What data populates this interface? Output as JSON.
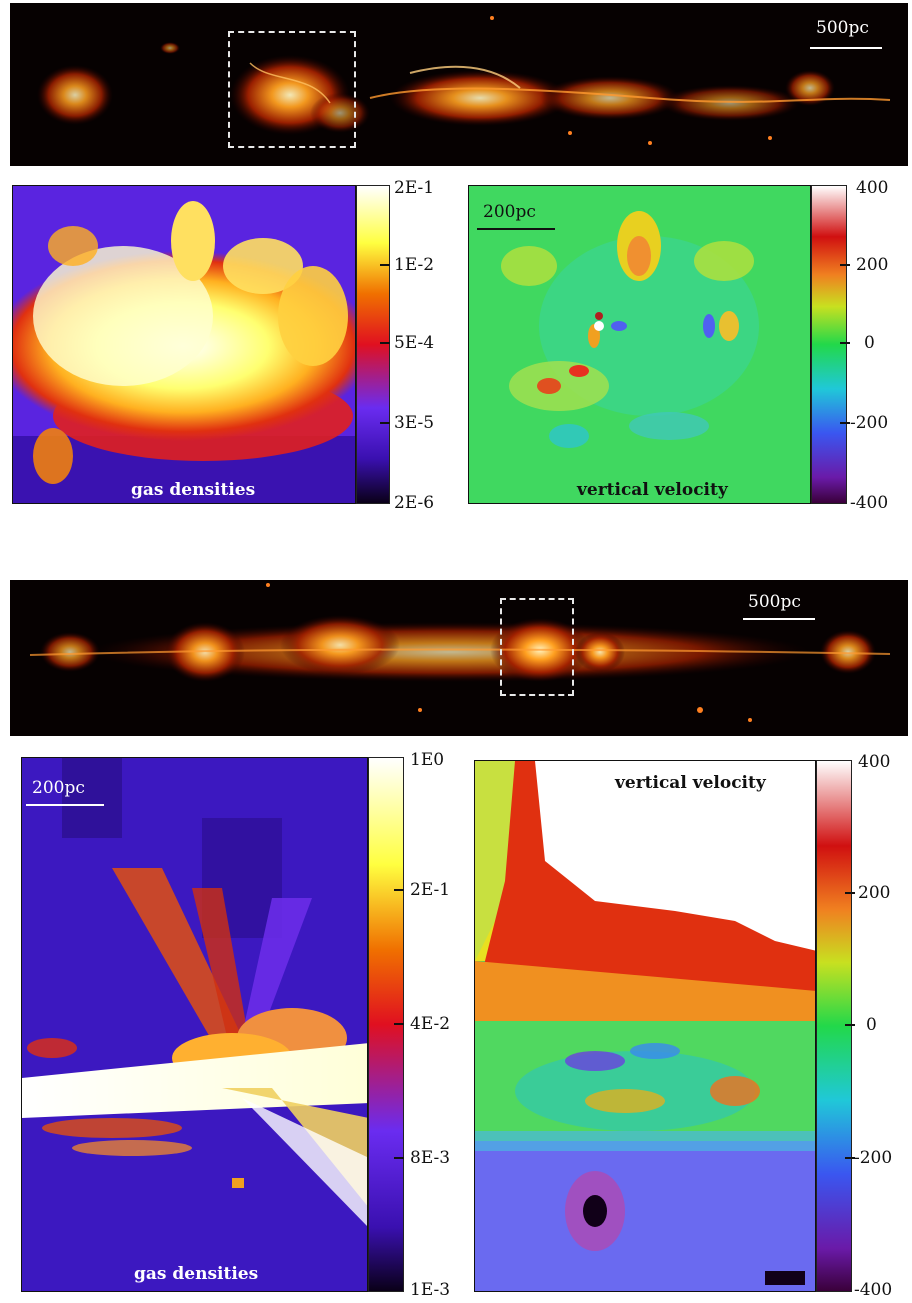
{
  "top": {
    "strip_scale": "500pc",
    "density": {
      "label": "gas densities",
      "ticks": [
        "2E-1",
        "1E-2",
        "5E-4",
        "3E-5",
        "2E-6"
      ]
    },
    "velocity": {
      "label": "vertical velocity",
      "scale": "200pc",
      "ticks": [
        "400",
        "200",
        "0",
        "-200",
        "-400"
      ]
    }
  },
  "bottom": {
    "strip_scale": "500pc",
    "density": {
      "label": "gas densities",
      "scale": "200pc",
      "ticks": [
        "1E0",
        "2E-1",
        "4E-2",
        "8E-3",
        "1E-3"
      ]
    },
    "velocity": {
      "label": "vertical velocity",
      "ticks": [
        "400",
        "200",
        "0",
        "-200",
        "-400"
      ]
    }
  },
  "colormaps": {
    "hot": [
      "#000000",
      "#2a0000",
      "#8a1500",
      "#e05000",
      "#ffb000",
      "#ffffff"
    ],
    "density": [
      "#0a0018",
      "#3a10b0",
      "#6a2cf0",
      "#e01020",
      "#f07000",
      "#ffff40",
      "#ffffff"
    ],
    "velocity": [
      "#3a003a",
      "#6a1aa8",
      "#3a56f0",
      "#20c8d8",
      "#22d84a",
      "#c8e020",
      "#f08020",
      "#d01010",
      "#ffffff"
    ]
  }
}
